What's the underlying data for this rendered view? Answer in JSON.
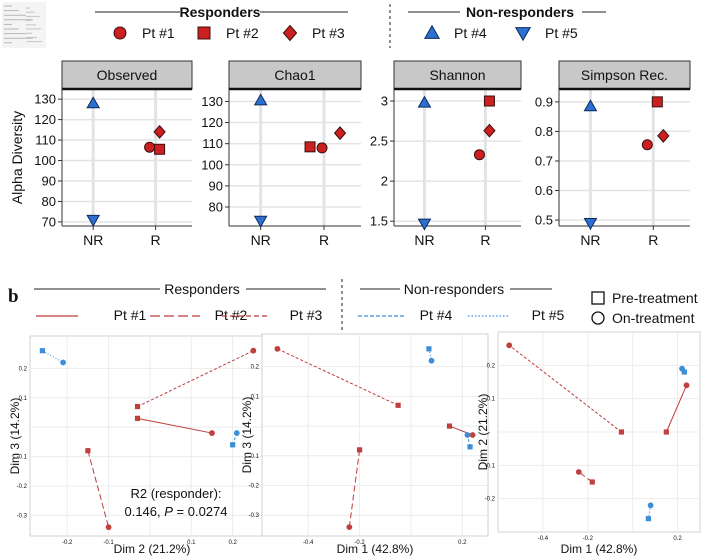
{
  "figure": {
    "panel_b_letter": "b",
    "top_legend": {
      "responders_title": "Responders",
      "nonresponders_title": "Non-responders",
      "patients": [
        {
          "label": "Pt #1",
          "shape": "circle",
          "color": "#cc1f1f"
        },
        {
          "label": "Pt #2",
          "shape": "square",
          "color": "#cc1f1f"
        },
        {
          "label": "Pt #3",
          "shape": "diamond",
          "color": "#cc1f1f"
        },
        {
          "label": "Pt #4",
          "shape": "triangle-up",
          "color": "#2b6fd1"
        },
        {
          "label": "Pt #5",
          "shape": "triangle-down",
          "color": "#2b6fd1"
        }
      ]
    },
    "bottom_legend": {
      "responders_title": "Responders",
      "nonresponders_title": "Non-responders",
      "lines": [
        {
          "label": "Pt #1",
          "dash": "solid",
          "color": "#c0393b"
        },
        {
          "label": "Pt #2",
          "dash": "long-dash",
          "color": "#c0393b"
        },
        {
          "label": "Pt #3",
          "dash": "short-dash",
          "color": "#c0393b"
        },
        {
          "label": "Pt #4",
          "dash": "dash",
          "color": "#3b8fd6"
        },
        {
          "label": "Pt #5",
          "dash": "dot",
          "color": "#3b8fd6"
        }
      ],
      "shape_keys": [
        {
          "label": "Pre-treatment",
          "shape": "square"
        },
        {
          "label": "On-treatment",
          "shape": "circle"
        }
      ]
    },
    "annotation": {
      "line1": "R2 (responder):",
      "line2_prefix": "0.146, ",
      "line2_p": "P",
      "line2_suffix": " = 0.0274"
    }
  },
  "chart_data": [
    {
      "type": "scatter",
      "title": "Observed",
      "ylabel": "Alpha Diversity",
      "categories": [
        "NR",
        "R"
      ],
      "ylim": [
        68,
        133
      ],
      "yticks": [
        70,
        80,
        90,
        100,
        110,
        120,
        130
      ],
      "points": [
        {
          "patient": "Pt #4",
          "group": "NR",
          "y": 128
        },
        {
          "patient": "Pt #5",
          "group": "NR",
          "y": 71
        },
        {
          "patient": "Pt #1",
          "group": "R",
          "y": 106.5
        },
        {
          "patient": "Pt #2",
          "group": "R",
          "y": 105.5
        },
        {
          "patient": "Pt #3",
          "group": "R",
          "y": 114
        }
      ]
    },
    {
      "type": "scatter",
      "title": "Chao1",
      "ylabel": "",
      "categories": [
        "NR",
        "R"
      ],
      "ylim": [
        71,
        134
      ],
      "yticks": [
        80,
        90,
        100,
        110,
        120,
        130
      ],
      "points": [
        {
          "patient": "Pt #4",
          "group": "NR",
          "y": 130.5
        },
        {
          "patient": "Pt #5",
          "group": "NR",
          "y": 73.5
        },
        {
          "patient": "Pt #1",
          "group": "R",
          "y": 108
        },
        {
          "patient": "Pt #2",
          "group": "R",
          "y": 108.5
        },
        {
          "patient": "Pt #3",
          "group": "R",
          "y": 115
        }
      ]
    },
    {
      "type": "scatter",
      "title": "Shannon",
      "ylabel": "",
      "categories": [
        "NR",
        "R"
      ],
      "ylim": [
        1.44,
        3.1
      ],
      "yticks": [
        1.5,
        2.0,
        2.5,
        3.0
      ],
      "points": [
        {
          "patient": "Pt #4",
          "group": "NR",
          "y": 2.98
        },
        {
          "patient": "Pt #5",
          "group": "NR",
          "y": 1.47
        },
        {
          "patient": "Pt #1",
          "group": "R",
          "y": 2.33
        },
        {
          "patient": "Pt #2",
          "group": "R",
          "y": 3.0
        },
        {
          "patient": "Pt #3",
          "group": "R",
          "y": 2.63
        }
      ]
    },
    {
      "type": "scatter",
      "title": "Simpson Rec.",
      "ylabel": "",
      "categories": [
        "NR",
        "R"
      ],
      "ylim": [
        0.48,
        0.93
      ],
      "yticks": [
        0.5,
        0.6,
        0.7,
        0.8,
        0.9
      ],
      "points": [
        {
          "patient": "Pt #4",
          "group": "NR",
          "y": 0.885
        },
        {
          "patient": "Pt #5",
          "group": "NR",
          "y": 0.49
        },
        {
          "patient": "Pt #1",
          "group": "R",
          "y": 0.755
        },
        {
          "patient": "Pt #2",
          "group": "R",
          "y": 0.9
        },
        {
          "patient": "Pt #3",
          "group": "R",
          "y": 0.785
        }
      ]
    },
    {
      "type": "scatter",
      "title": "",
      "xlabel": "Dim 2 (21.2%)",
      "ylabel": "Dim 3 (14.2%)",
      "xlim": [
        -0.29,
        0.3
      ],
      "ylim": [
        -0.37,
        0.31
      ],
      "xticks": [
        -0.2,
        -0.1,
        0.1,
        0.2
      ],
      "yticks": [
        -0.3,
        -0.2,
        -0.1,
        0.1,
        0.2
      ],
      "pairs": [
        {
          "patient": "Pt #1",
          "pre": [
            -0.03,
            0.03
          ],
          "on": [
            0.15,
            -0.02
          ]
        },
        {
          "patient": "Pt #2",
          "pre": [
            -0.15,
            -0.08
          ],
          "on": [
            -0.1,
            -0.34
          ]
        },
        {
          "patient": "Pt #3",
          "pre": [
            -0.03,
            0.07
          ],
          "on": [
            0.25,
            0.26
          ]
        },
        {
          "patient": "Pt #4",
          "pre": [
            0.2,
            -0.06
          ],
          "on": [
            0.21,
            -0.02
          ]
        },
        {
          "patient": "Pt #5",
          "pre": [
            -0.26,
            0.26
          ],
          "on": [
            -0.21,
            0.22
          ]
        }
      ]
    },
    {
      "type": "scatter",
      "title": "",
      "xlabel": "Dim 1 (42.8%)",
      "ylabel": "Dim 3 (14.2%)",
      "xlim": [
        -0.58,
        0.3
      ],
      "ylim": [
        -0.37,
        0.31
      ],
      "xticks": [
        -0.4,
        -0.2,
        0.2
      ],
      "yticks": [
        -0.3,
        -0.2,
        -0.1,
        0.1,
        0.2
      ],
      "pairs": [
        {
          "patient": "Pt #1",
          "pre": [
            0.15,
            0.0
          ],
          "on": [
            0.24,
            -0.03
          ]
        },
        {
          "patient": "Pt #2",
          "pre": [
            -0.2,
            -0.08
          ],
          "on": [
            -0.24,
            -0.34
          ]
        },
        {
          "patient": "Pt #3",
          "pre": [
            -0.05,
            0.07
          ],
          "on": [
            -0.52,
            0.26
          ]
        },
        {
          "patient": "Pt #4",
          "pre": [
            0.23,
            -0.07
          ],
          "on": [
            0.22,
            -0.03
          ]
        },
        {
          "patient": "Pt #5",
          "pre": [
            0.07,
            0.26
          ],
          "on": [
            0.08,
            0.22
          ]
        }
      ]
    },
    {
      "type": "scatter",
      "title": "",
      "xlabel": "Dim 1 (42.8%)",
      "ylabel": "Dim 2 (21.2%)",
      "xlim": [
        -0.6,
        0.3
      ],
      "ylim": [
        -0.3,
        0.3
      ],
      "xticks": [
        -0.4,
        -0.2,
        0.2
      ],
      "yticks": [
        -0.2,
        -0.1,
        0.1,
        0.2
      ],
      "pairs": [
        {
          "patient": "Pt #1",
          "pre": [
            0.15,
            0.0
          ],
          "on": [
            0.24,
            0.14
          ]
        },
        {
          "patient": "Pt #2",
          "pre": [
            -0.18,
            -0.15
          ],
          "on": [
            -0.24,
            -0.12
          ]
        },
        {
          "patient": "Pt #3",
          "pre": [
            -0.05,
            0.0
          ],
          "on": [
            -0.55,
            0.26
          ]
        },
        {
          "patient": "Pt #4",
          "pre": [
            0.23,
            0.18
          ],
          "on": [
            0.22,
            0.19
          ]
        },
        {
          "patient": "Pt #5",
          "pre": [
            0.07,
            -0.26
          ],
          "on": [
            0.08,
            -0.22
          ]
        }
      ]
    }
  ]
}
